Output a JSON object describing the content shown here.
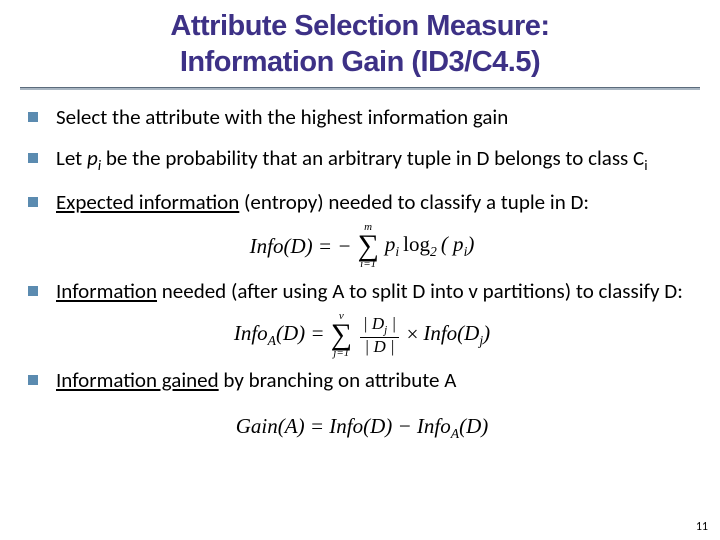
{
  "title": {
    "line1": "Attribute Selection Measure:",
    "line2": "Information Gain (ID3/C4.5)",
    "color": "#3d3186",
    "fontsize": 29
  },
  "rule": {
    "top_color": "#5b6b7c",
    "bottom_color": "#a9b6c2"
  },
  "bullets": {
    "marker_color": "#5b8bb0",
    "b1": "Select the attribute with the highest information gain",
    "b2_pre": "Let ",
    "b2_pi": "p",
    "b2_pi_sub": "i",
    "b2_mid": " be the probability that an arbitrary tuple in D belongs to class C",
    "b2_ci_sub": "i",
    "b3_u": "Expected information",
    "b3_rest": " (entropy) needed to classify a tuple in D:",
    "b4_u": "Information",
    "b4_rest": " needed (after using A to split D into v partitions) to classify D:",
    "b5_u": "Information gained",
    "b5_rest": " by branching on attribute A"
  },
  "formulas": {
    "f1": {
      "lhs": "Info(D) = −",
      "sum_top": "m",
      "sum_bot": "i=1",
      "term1": "p",
      "term1_sub": "i",
      "log": " log",
      "log_sub": "2",
      "term2": "( p",
      "term2_sub": "i",
      "term2_close": ")"
    },
    "f2": {
      "lhs_name": "Info",
      "lhs_sub": "A",
      "lhs_rest": "(D) = ",
      "sum_top": "v",
      "sum_bot": "j=1",
      "frac_num": "| D",
      "frac_num_sub": "j",
      "frac_num_close": " |",
      "frac_den": "| D |",
      "times": " × ",
      "rhs": "Info(D",
      "rhs_sub": "j",
      "rhs_close": ")"
    },
    "f3": {
      "text": "Gain(A) = Info(D) − Info",
      "sub": "A",
      "rest": "(D)"
    }
  },
  "page_number": "11",
  "body_fontsize": 21
}
